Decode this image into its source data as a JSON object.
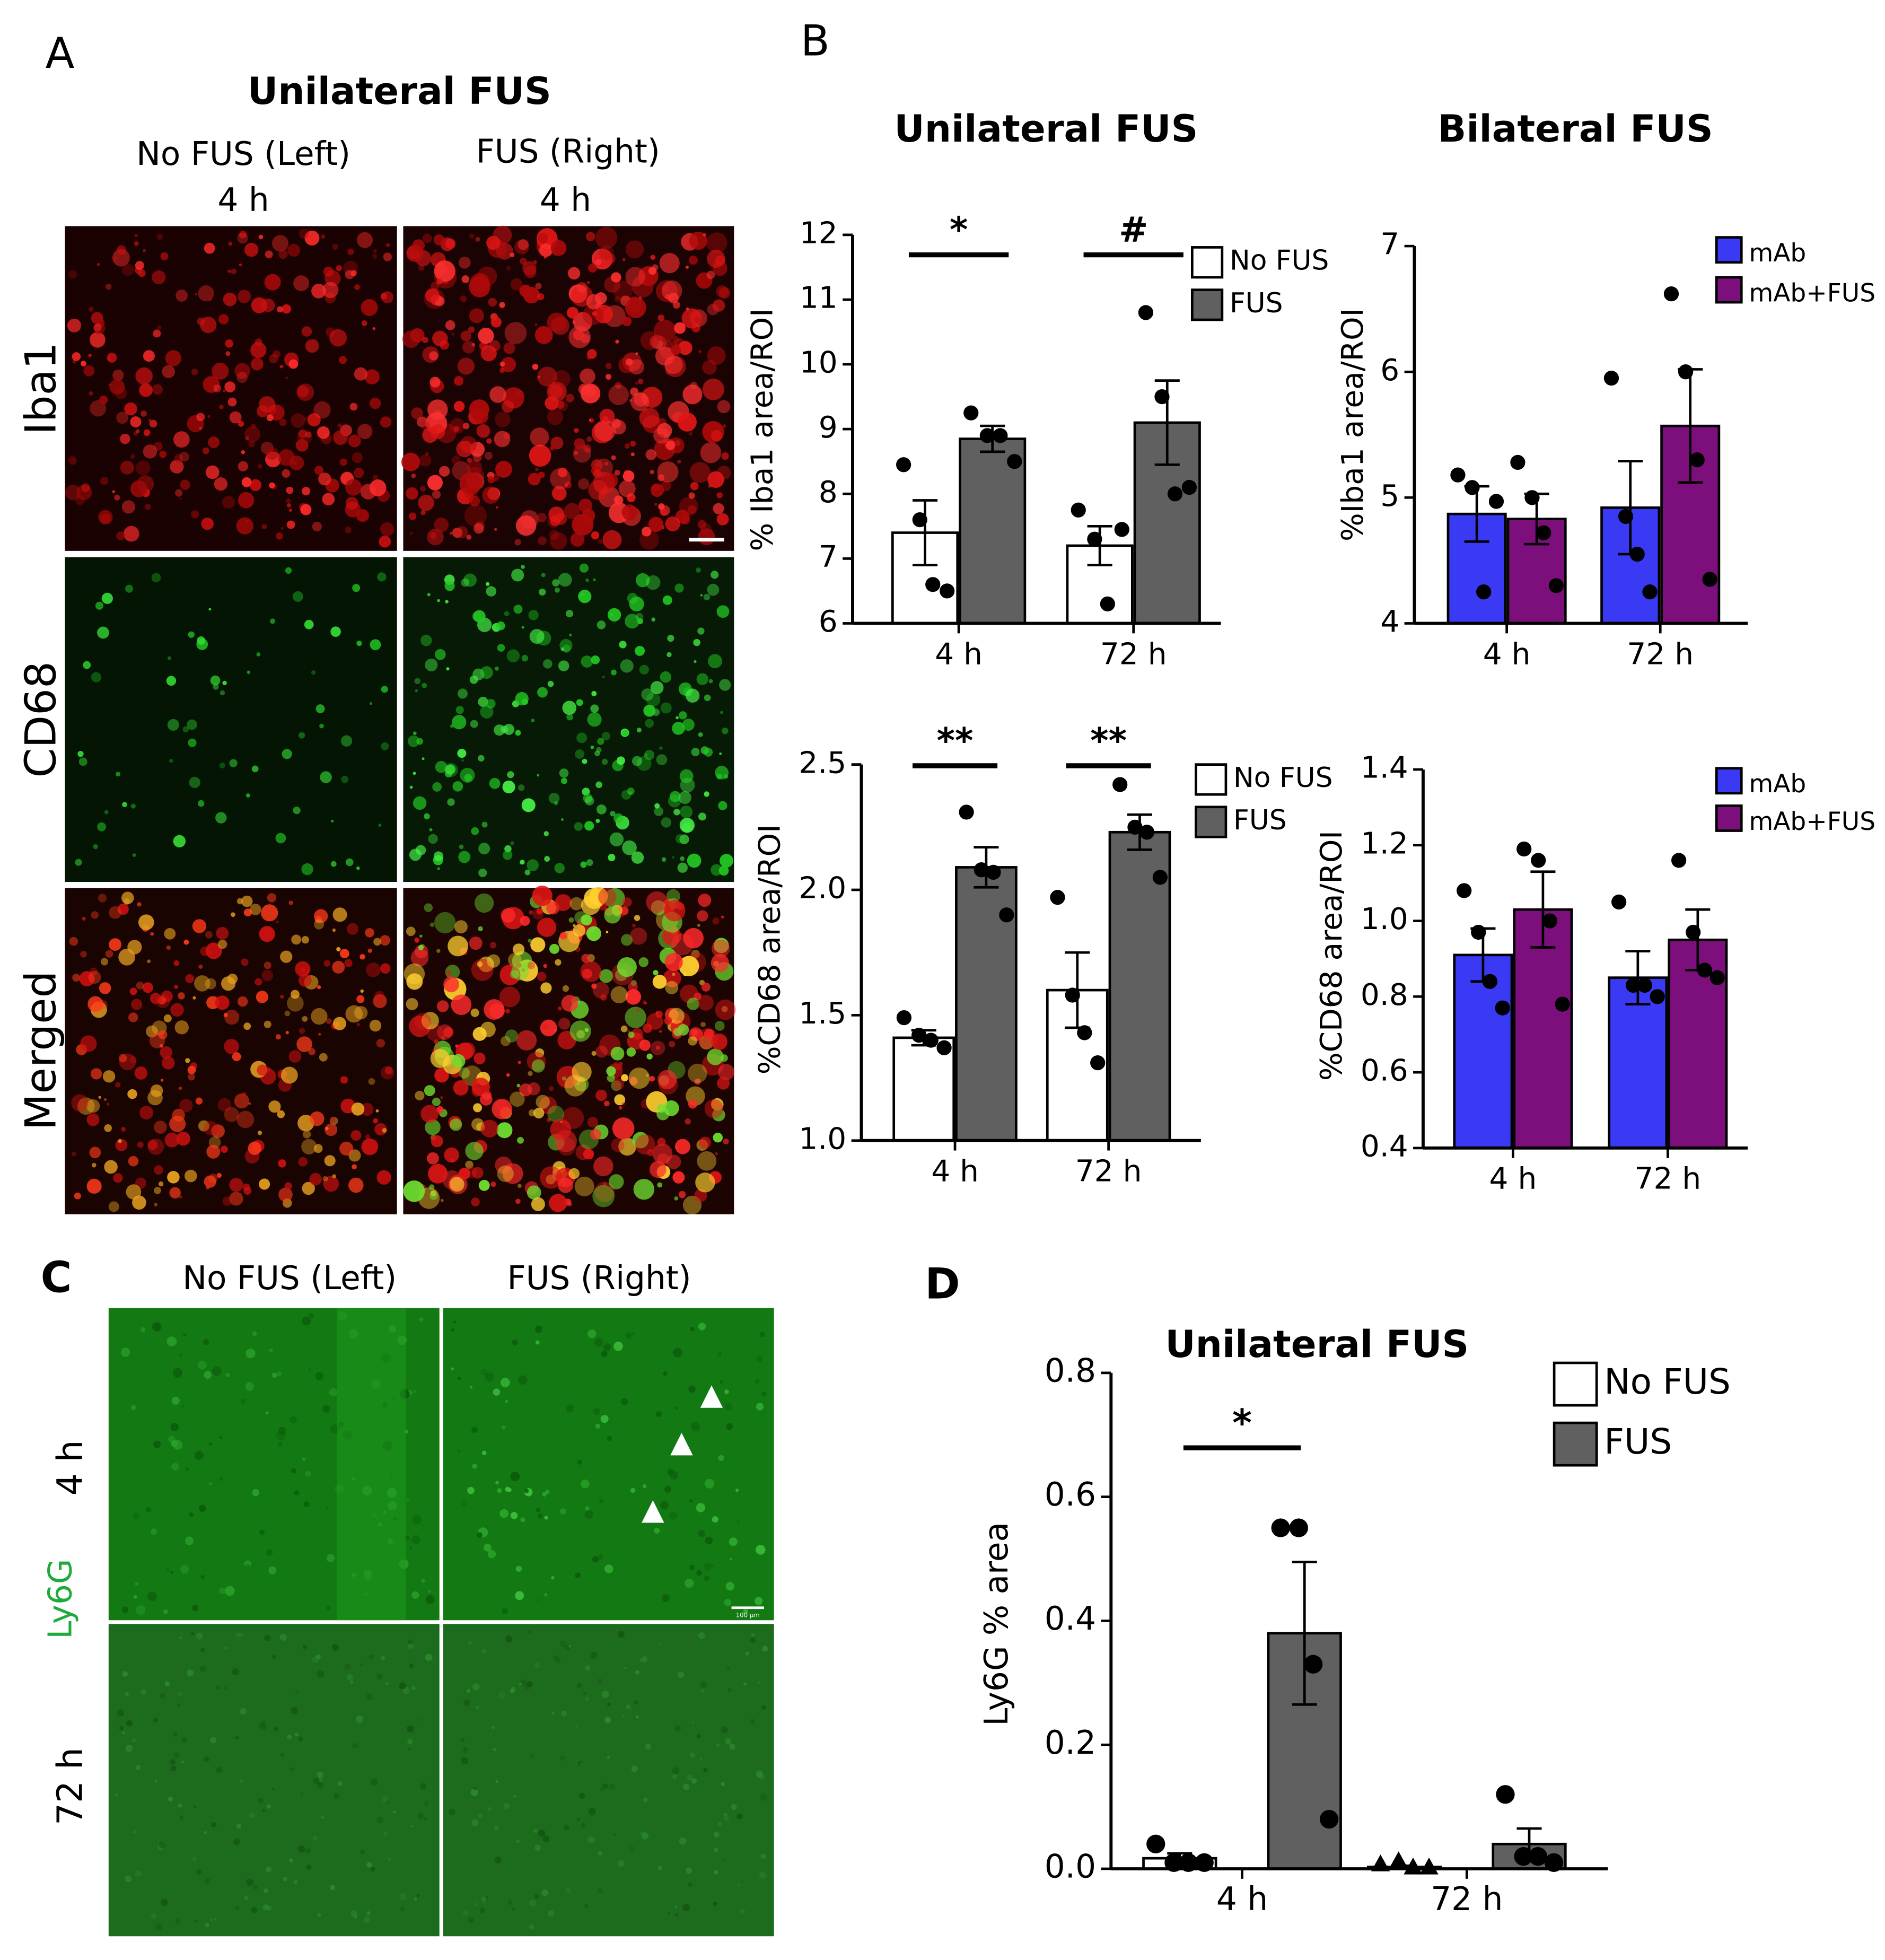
{
  "panel_a": {
    "label": "A",
    "title": "Unilateral FUS",
    "columns": [
      "No FUS (Left)",
      "FUS (Right)"
    ],
    "times": [
      "4 h",
      "4 h"
    ],
    "rows": [
      "Iba1",
      "CD68",
      "Merged"
    ]
  },
  "panel_b": {
    "label": "B"
  },
  "panel_c": {
    "label": "C",
    "columns": [
      "No FUS (Left)",
      "FUS (Right)"
    ],
    "rows": [
      "4 h",
      "72 h"
    ],
    "stain": "Ly6G",
    "scale_bar": "100 µm"
  },
  "panel_d": {
    "label": "D"
  },
  "chart_data": [
    {
      "type": "bar",
      "title": "Unilateral FUS",
      "y_label": "% Iba1 area/ROI",
      "categories": [
        "4 h",
        "72 h"
      ],
      "ylim": [
        6,
        12
      ],
      "yticks": [
        6,
        7,
        8,
        9,
        10,
        11,
        12
      ],
      "series": [
        {
          "name": "No FUS",
          "color": "#ffffff",
          "values": [
            7.4,
            7.2
          ],
          "errors": [
            0.5,
            0.3
          ],
          "points": [
            [
              8.45,
              7.6,
              6.6,
              6.5
            ],
            [
              7.75,
              7.3,
              6.3,
              7.45
            ]
          ]
        },
        {
          "name": "FUS",
          "color": "#606060",
          "values": [
            8.85,
            9.1
          ],
          "errors": [
            0.2,
            0.65
          ],
          "points": [
            [
              9.25,
              8.9,
              8.9,
              8.5
            ],
            [
              10.8,
              9.5,
              8.0,
              8.1
            ]
          ]
        }
      ],
      "annotations": [
        {
          "text": "*",
          "category": 0
        },
        {
          "text": "#",
          "category": 1
        }
      ]
    },
    {
      "type": "bar",
      "title": "Bilateral FUS",
      "y_label": "%Iba1 area/ROI",
      "categories": [
        "4 h",
        "72 h"
      ],
      "ylim": [
        4,
        7
      ],
      "yticks": [
        4,
        5,
        6,
        7
      ],
      "series": [
        {
          "name": "mAb",
          "color": "#3a3af5",
          "values": [
            4.87,
            4.92
          ],
          "errors": [
            0.22,
            0.37
          ],
          "points": [
            [
              5.18,
              5.08,
              4.25,
              4.97
            ],
            [
              5.95,
              4.85,
              4.55,
              4.25
            ]
          ]
        },
        {
          "name": "mAb+FUS",
          "color": "#7d0f7d",
          "values": [
            4.83,
            5.57
          ],
          "errors": [
            0.2,
            0.45
          ],
          "points": [
            [
              5.28,
              5.0,
              4.72,
              4.3
            ],
            [
              6.62,
              6.0,
              5.3,
              4.35
            ]
          ]
        }
      ]
    },
    {
      "type": "bar",
      "y_label": "%CD68 area/ROI",
      "categories": [
        "4 h",
        "72 h"
      ],
      "ylim": [
        1,
        2.5
      ],
      "yticks": [
        {
          "value": 1,
          "label": "1.0"
        },
        1.5,
        {
          "value": 2,
          "label": "2.0"
        },
        2.5
      ],
      "series": [
        {
          "name": "No FUS",
          "color": "#ffffff",
          "values": [
            1.41,
            1.6
          ],
          "errors": [
            0.03,
            0.15
          ],
          "points": [
            [
              1.49,
              1.42,
              1.4,
              1.37
            ],
            [
              1.97,
              1.58,
              1.43,
              1.31
            ]
          ]
        },
        {
          "name": "FUS",
          "color": "#606060",
          "values": [
            2.09,
            2.23
          ],
          "errors": [
            0.08,
            0.07
          ],
          "points": [
            [
              2.31,
              2.08,
              2.07,
              1.9
            ],
            [
              2.42,
              2.25,
              2.23,
              2.05
            ]
          ]
        }
      ],
      "annotations": [
        {
          "text": "**",
          "category": 0
        },
        {
          "text": "**",
          "category": 1
        }
      ]
    },
    {
      "type": "bar",
      "y_label": "%CD68 area/ROI",
      "categories": [
        "4 h",
        "72 h"
      ],
      "ylim": [
        0.4,
        1.4
      ],
      "yticks": [
        0.4,
        0.6,
        0.8,
        {
          "value": 1,
          "label": "1.0"
        },
        1.2,
        1.4
      ],
      "series": [
        {
          "name": "mAb",
          "color": "#3a3af5",
          "values": [
            0.91,
            0.85
          ],
          "errors": [
            0.07,
            0.07
          ],
          "points": [
            [
              1.08,
              0.97,
              0.84,
              0.77
            ],
            [
              1.05,
              0.83,
              0.83,
              0.8
            ]
          ]
        },
        {
          "name": "mAb+FUS",
          "color": "#7d0f7d",
          "values": [
            1.03,
            0.95
          ],
          "errors": [
            0.1,
            0.08
          ],
          "points": [
            [
              1.19,
              1.16,
              1.0,
              0.78
            ],
            [
              1.16,
              0.97,
              0.87,
              0.85
            ]
          ]
        }
      ]
    },
    {
      "type": "bar",
      "title": "Unilateral FUS",
      "y_label": "Ly6G % area",
      "categories": [
        "4 h",
        "72 h"
      ],
      "ylim": [
        0,
        0.8
      ],
      "yticks": [
        {
          "value": 0,
          "label": "0.0"
        },
        0.2,
        0.4,
        0.6,
        0.8
      ],
      "series": [
        {
          "name": "No FUS",
          "color": "#ffffff",
          "values": [
            0.017,
            0.003
          ],
          "errors": [
            0.008,
            0.002
          ],
          "point_shapes": [
            "circle",
            "triangle"
          ],
          "points": [
            [
              0.04,
              0.01,
              0.01,
              0.01
            ],
            [
              0.005,
              0.01,
              0.0,
              0.0
            ]
          ]
        },
        {
          "name": "FUS",
          "color": "#606060",
          "values": [
            0.38,
            0.04
          ],
          "errors": [
            0.115,
            0.025
          ],
          "points": [
            [
              0.55,
              0.55,
              0.33,
              0.08
            ],
            [
              0.12,
              0.02,
              0.02,
              0.01
            ]
          ]
        }
      ],
      "annotations": [
        {
          "text": "*",
          "category": 0
        }
      ]
    }
  ]
}
